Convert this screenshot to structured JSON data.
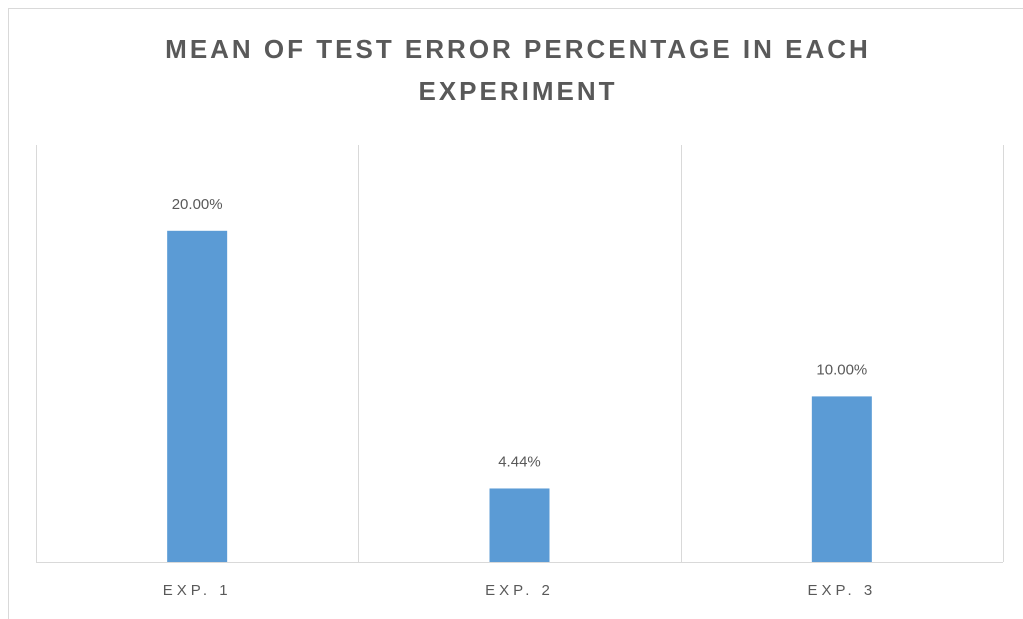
{
  "chart_data": {
    "type": "bar",
    "title": "MEAN OF TEST ERROR PERCENTAGE IN EACH EXPERIMENT",
    "categories": [
      "EXP. 1",
      "EXP. 2",
      "EXP. 3"
    ],
    "values": [
      20,
      4.44,
      10
    ],
    "value_labels": [
      "20.00%",
      "4.44%",
      "10.00%"
    ],
    "color": "#5b9bd5",
    "ylim": [
      0,
      25
    ]
  }
}
